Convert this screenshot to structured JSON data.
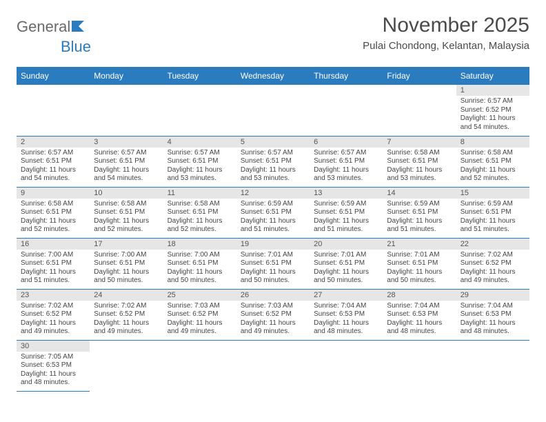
{
  "brand": {
    "part1": "General",
    "part2": "Blue"
  },
  "title": "November 2025",
  "location": "Pulai Chondong, Kelantan, Malaysia",
  "style": {
    "header_bg": "#2b7bbf",
    "header_fg": "#ffffff",
    "daynum_bg": "#e6e6e6",
    "border_color": "#2b7bbf",
    "title_fontsize": 30,
    "location_fontsize": 15,
    "dayhdr_fontsize": 12,
    "daynum_fontsize": 11,
    "cell_fontsize": 10
  },
  "day_headers": [
    "Sunday",
    "Monday",
    "Tuesday",
    "Wednesday",
    "Thursday",
    "Friday",
    "Saturday"
  ],
  "weeks": [
    [
      null,
      null,
      null,
      null,
      null,
      null,
      {
        "d": "1",
        "sr": "6:57 AM",
        "ss": "6:52 PM",
        "dl": "11 hours and 54 minutes."
      }
    ],
    [
      {
        "d": "2",
        "sr": "6:57 AM",
        "ss": "6:51 PM",
        "dl": "11 hours and 54 minutes."
      },
      {
        "d": "3",
        "sr": "6:57 AM",
        "ss": "6:51 PM",
        "dl": "11 hours and 54 minutes."
      },
      {
        "d": "4",
        "sr": "6:57 AM",
        "ss": "6:51 PM",
        "dl": "11 hours and 53 minutes."
      },
      {
        "d": "5",
        "sr": "6:57 AM",
        "ss": "6:51 PM",
        "dl": "11 hours and 53 minutes."
      },
      {
        "d": "6",
        "sr": "6:57 AM",
        "ss": "6:51 PM",
        "dl": "11 hours and 53 minutes."
      },
      {
        "d": "7",
        "sr": "6:58 AM",
        "ss": "6:51 PM",
        "dl": "11 hours and 53 minutes."
      },
      {
        "d": "8",
        "sr": "6:58 AM",
        "ss": "6:51 PM",
        "dl": "11 hours and 52 minutes."
      }
    ],
    [
      {
        "d": "9",
        "sr": "6:58 AM",
        "ss": "6:51 PM",
        "dl": "11 hours and 52 minutes."
      },
      {
        "d": "10",
        "sr": "6:58 AM",
        "ss": "6:51 PM",
        "dl": "11 hours and 52 minutes."
      },
      {
        "d": "11",
        "sr": "6:58 AM",
        "ss": "6:51 PM",
        "dl": "11 hours and 52 minutes."
      },
      {
        "d": "12",
        "sr": "6:59 AM",
        "ss": "6:51 PM",
        "dl": "11 hours and 51 minutes."
      },
      {
        "d": "13",
        "sr": "6:59 AM",
        "ss": "6:51 PM",
        "dl": "11 hours and 51 minutes."
      },
      {
        "d": "14",
        "sr": "6:59 AM",
        "ss": "6:51 PM",
        "dl": "11 hours and 51 minutes."
      },
      {
        "d": "15",
        "sr": "6:59 AM",
        "ss": "6:51 PM",
        "dl": "11 hours and 51 minutes."
      }
    ],
    [
      {
        "d": "16",
        "sr": "7:00 AM",
        "ss": "6:51 PM",
        "dl": "11 hours and 51 minutes."
      },
      {
        "d": "17",
        "sr": "7:00 AM",
        "ss": "6:51 PM",
        "dl": "11 hours and 50 minutes."
      },
      {
        "d": "18",
        "sr": "7:00 AM",
        "ss": "6:51 PM",
        "dl": "11 hours and 50 minutes."
      },
      {
        "d": "19",
        "sr": "7:01 AM",
        "ss": "6:51 PM",
        "dl": "11 hours and 50 minutes."
      },
      {
        "d": "20",
        "sr": "7:01 AM",
        "ss": "6:51 PM",
        "dl": "11 hours and 50 minutes."
      },
      {
        "d": "21",
        "sr": "7:01 AM",
        "ss": "6:51 PM",
        "dl": "11 hours and 50 minutes."
      },
      {
        "d": "22",
        "sr": "7:02 AM",
        "ss": "6:52 PM",
        "dl": "11 hours and 49 minutes."
      }
    ],
    [
      {
        "d": "23",
        "sr": "7:02 AM",
        "ss": "6:52 PM",
        "dl": "11 hours and 49 minutes."
      },
      {
        "d": "24",
        "sr": "7:02 AM",
        "ss": "6:52 PM",
        "dl": "11 hours and 49 minutes."
      },
      {
        "d": "25",
        "sr": "7:03 AM",
        "ss": "6:52 PM",
        "dl": "11 hours and 49 minutes."
      },
      {
        "d": "26",
        "sr": "7:03 AM",
        "ss": "6:52 PM",
        "dl": "11 hours and 49 minutes."
      },
      {
        "d": "27",
        "sr": "7:04 AM",
        "ss": "6:53 PM",
        "dl": "11 hours and 48 minutes."
      },
      {
        "d": "28",
        "sr": "7:04 AM",
        "ss": "6:53 PM",
        "dl": "11 hours and 48 minutes."
      },
      {
        "d": "29",
        "sr": "7:04 AM",
        "ss": "6:53 PM",
        "dl": "11 hours and 48 minutes."
      }
    ],
    [
      {
        "d": "30",
        "sr": "7:05 AM",
        "ss": "6:53 PM",
        "dl": "11 hours and 48 minutes."
      },
      null,
      null,
      null,
      null,
      null,
      null
    ]
  ],
  "labels": {
    "sunrise": "Sunrise: ",
    "sunset": "Sunset: ",
    "daylight": "Daylight: "
  }
}
